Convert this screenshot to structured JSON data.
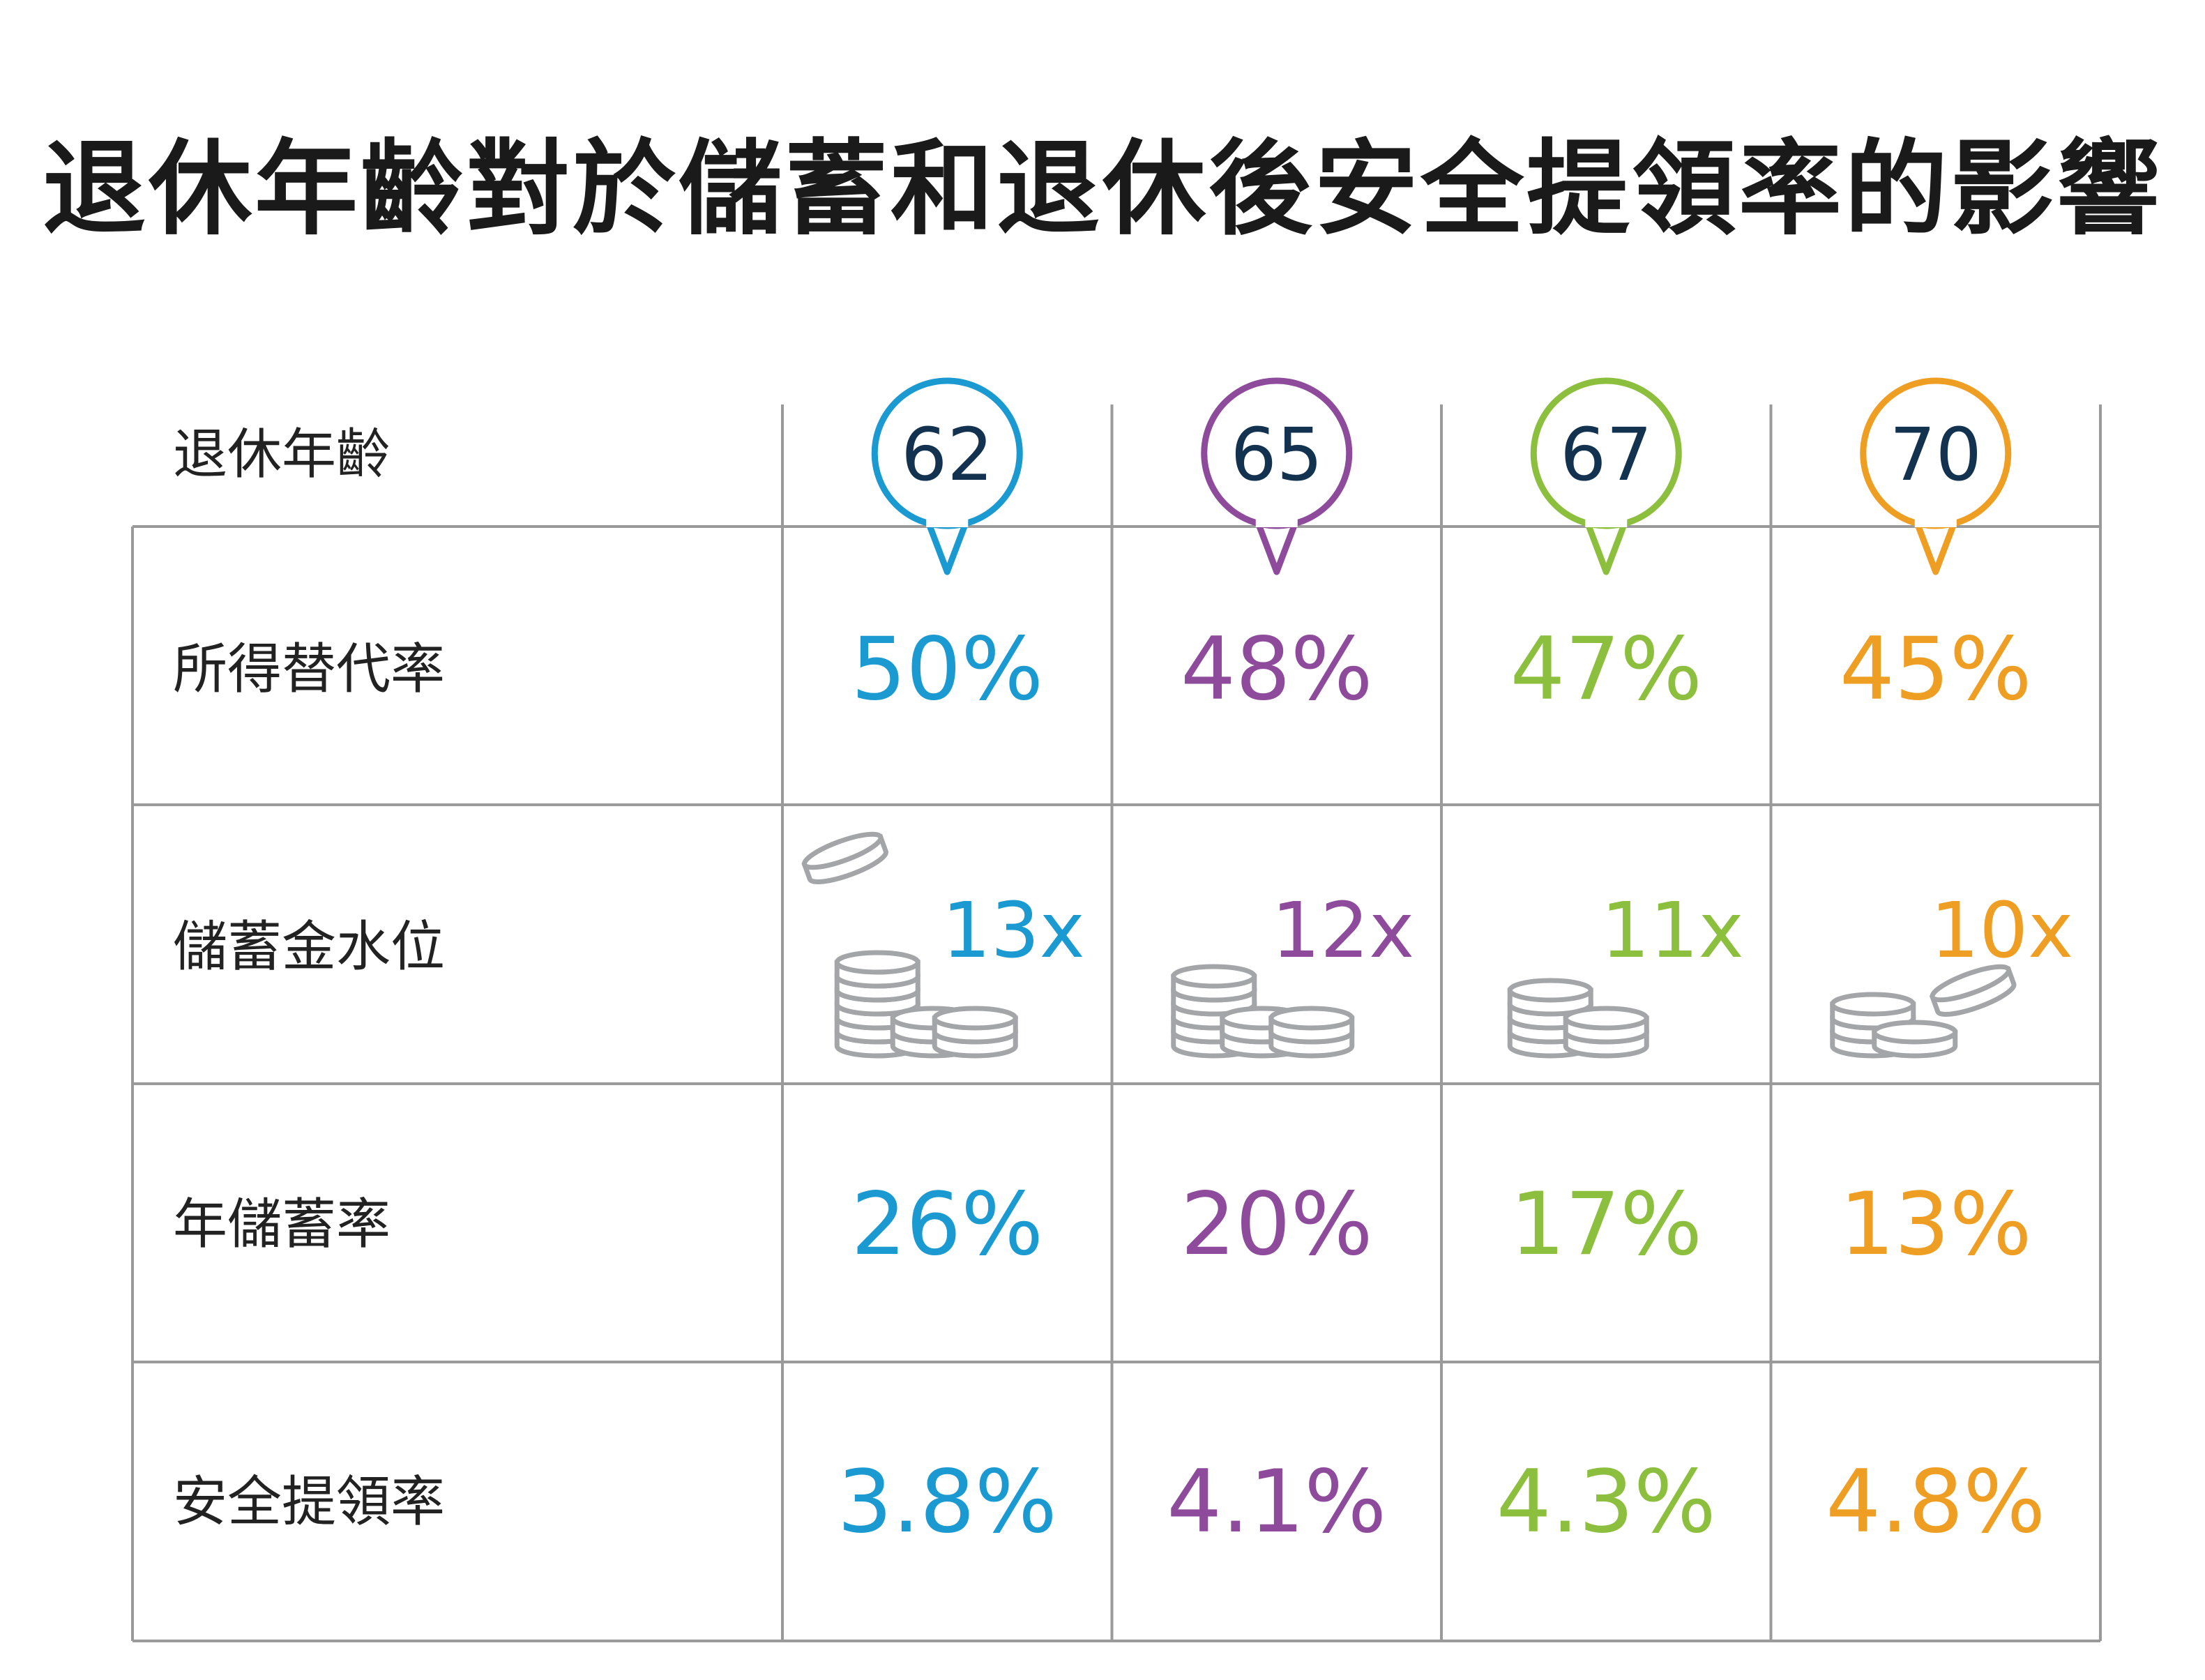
{
  "title": "退休年齡對於儲蓄和退休後安全提領率的影響",
  "colors": {
    "blue": "#1b9ad2",
    "purple": "#8e4b9c",
    "green": "#8dbf3f",
    "orange": "#ee9e22",
    "coin": "#a3a5a8",
    "grid": "#9a9a9a",
    "age_text": "#12324f"
  },
  "row_labels": {
    "age": "退休年齡",
    "replacement": "所得替代率",
    "savings_level": "儲蓄金水位",
    "annual_savings": "年儲蓄率",
    "withdrawal": "安全提領率"
  },
  "chart_data": {
    "type": "table",
    "title": "退休年齡對於儲蓄和退休後安全提領率的影響",
    "columns": [
      {
        "age": "62",
        "color": "#1b9ad2",
        "replacement": "50%",
        "savings_level": "13x",
        "annual_savings": "26%",
        "withdrawal": "3.8%",
        "coin_icon": "coins-stack-large-icon"
      },
      {
        "age": "65",
        "color": "#8e4b9c",
        "replacement": "48%",
        "savings_level": "12x",
        "annual_savings": "20%",
        "withdrawal": "4.1%",
        "coin_icon": "coins-stack-icon"
      },
      {
        "age": "67",
        "color": "#8dbf3f",
        "replacement": "47%",
        "savings_level": "11x",
        "annual_savings": "17%",
        "withdrawal": "4.3%",
        "coin_icon": "coins-stack-icon"
      },
      {
        "age": "70",
        "color": "#ee9e22",
        "replacement": "45%",
        "savings_level": "10x",
        "annual_savings": "13%",
        "withdrawal": "4.8%",
        "coin_icon": "coins-stack-small-icon"
      }
    ]
  }
}
